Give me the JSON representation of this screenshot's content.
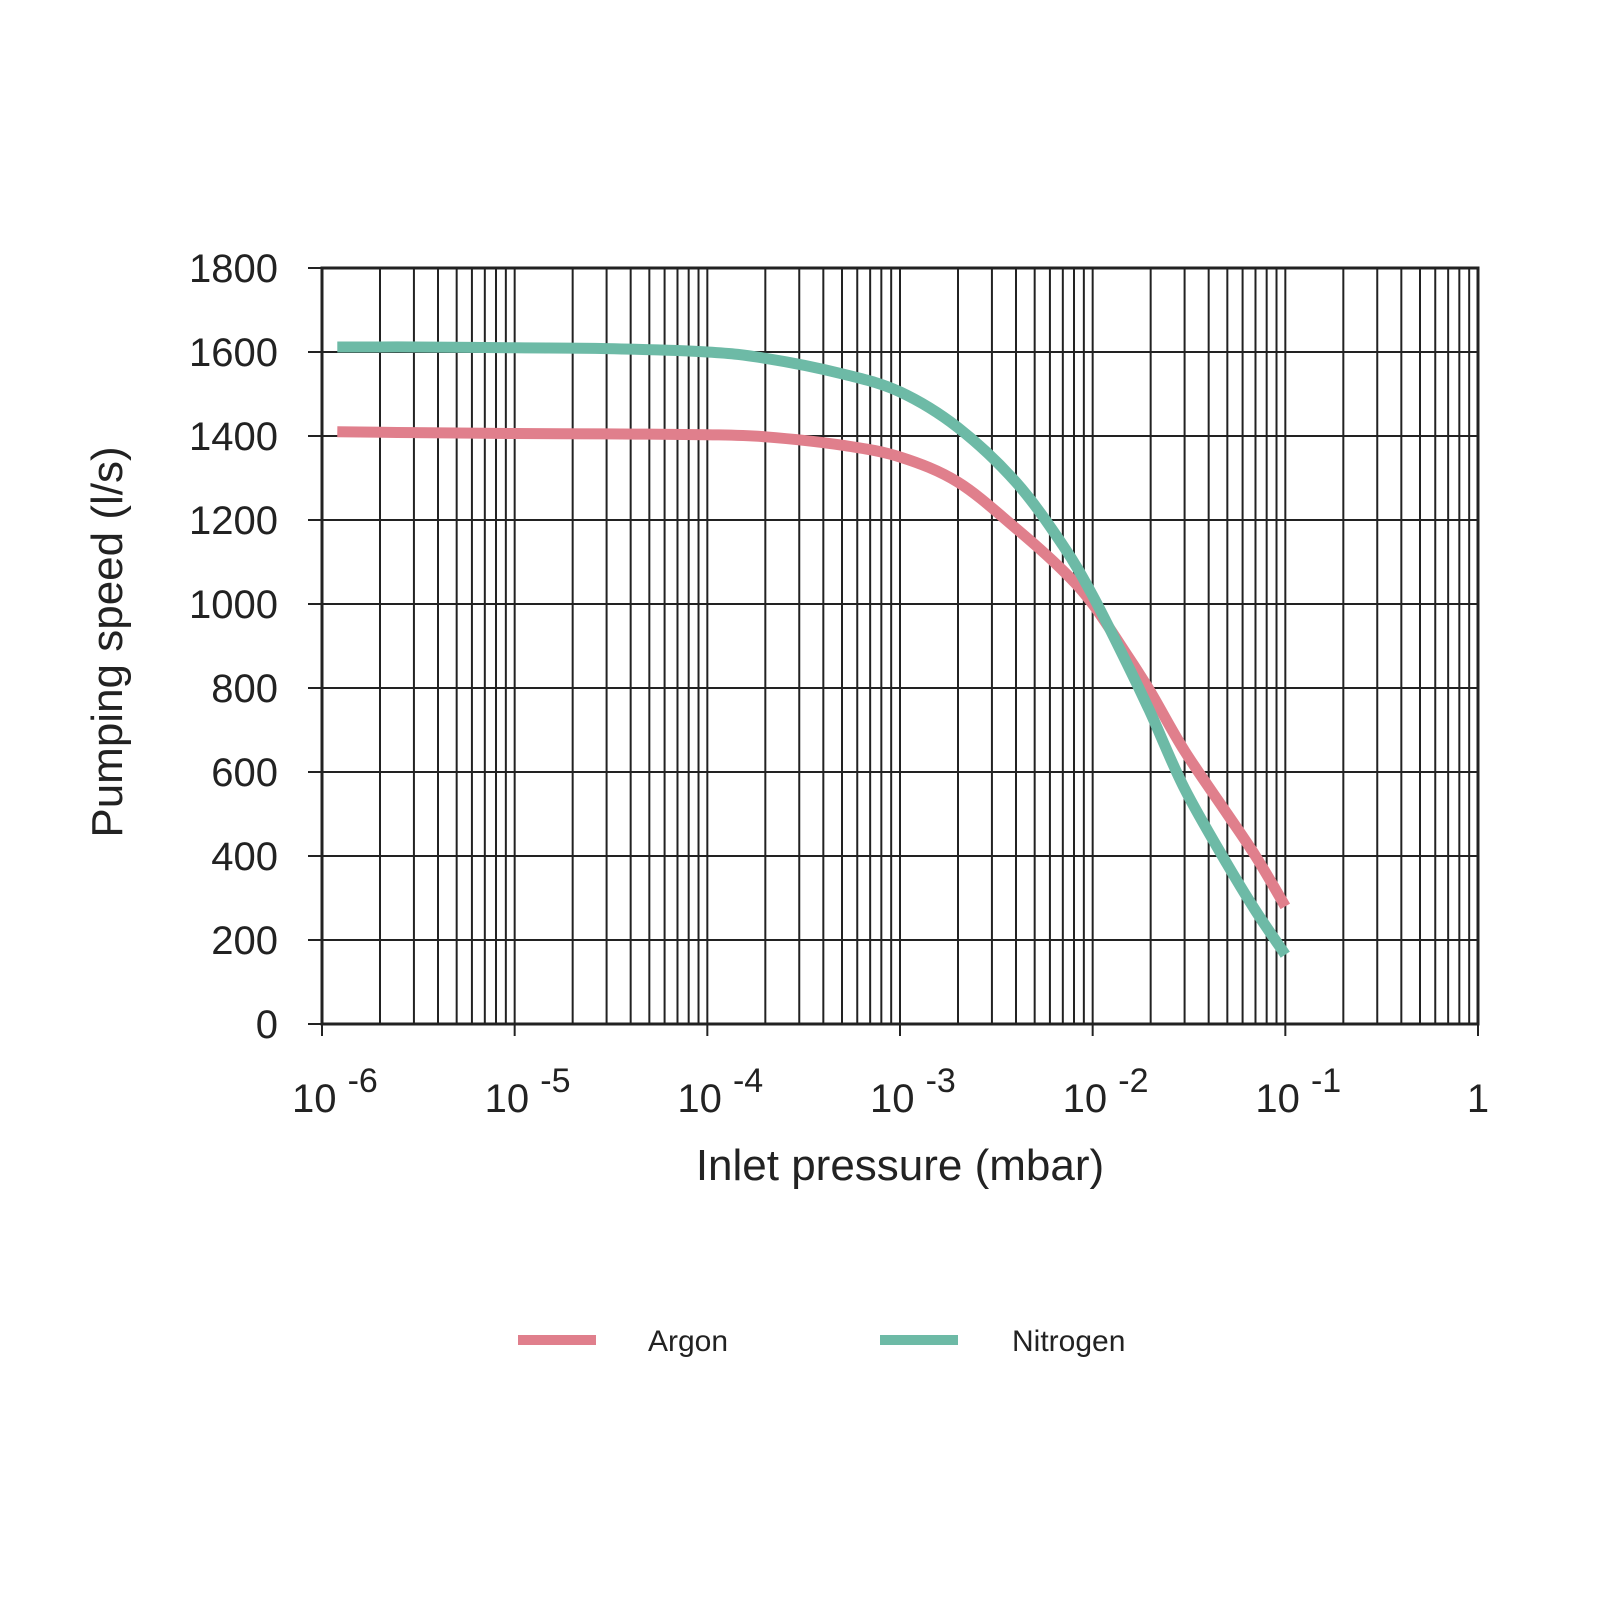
{
  "chart_data": {
    "type": "line",
    "x_scale": "log",
    "xlabel": "Inlet pressure (mbar)",
    "ylabel": "Pumping speed (l/s)",
    "xlim": [
      1e-06,
      1
    ],
    "ylim": [
      0,
      1800
    ],
    "grid": true,
    "legend_position": "bottom",
    "x_ticks": [
      {
        "value": 1e-06,
        "base": "10",
        "exp": "-6"
      },
      {
        "value": 1e-05,
        "base": "10",
        "exp": "-5"
      },
      {
        "value": 0.0001,
        "base": "10",
        "exp": "-4"
      },
      {
        "value": 0.001,
        "base": "10",
        "exp": "-3"
      },
      {
        "value": 0.01,
        "base": "10",
        "exp": "-2"
      },
      {
        "value": 0.1,
        "base": "10",
        "exp": "-1"
      },
      {
        "value": 1,
        "base": "1",
        "exp": ""
      }
    ],
    "y_ticks": [
      0,
      200,
      400,
      600,
      800,
      1000,
      1200,
      1400,
      1600,
      1800
    ],
    "series": [
      {
        "name": "Argon",
        "color": "#e07f8c",
        "x": [
          1.2e-06,
          3e-06,
          1e-05,
          3e-05,
          0.0001,
          0.0002,
          0.0005,
          0.001,
          0.002,
          0.004,
          0.007,
          0.01,
          0.015,
          0.02,
          0.03,
          0.05,
          0.07,
          0.1
        ],
        "y": [
          1410,
          1408,
          1406,
          1405,
          1403,
          1398,
          1378,
          1350,
          1290,
          1180,
          1080,
          1000,
          880,
          790,
          650,
          500,
          400,
          280
        ]
      },
      {
        "name": "Nitrogen",
        "color": "#6dbaa6",
        "x": [
          1.2e-06,
          3e-06,
          1e-05,
          3e-05,
          0.0001,
          0.0002,
          0.0005,
          0.001,
          0.002,
          0.004,
          0.007,
          0.01,
          0.015,
          0.02,
          0.03,
          0.05,
          0.07,
          0.1
        ],
        "y": [
          1612,
          1612,
          1610,
          1608,
          1600,
          1585,
          1548,
          1505,
          1420,
          1290,
          1140,
          1020,
          860,
          740,
          560,
          380,
          270,
          165
        ]
      }
    ]
  }
}
